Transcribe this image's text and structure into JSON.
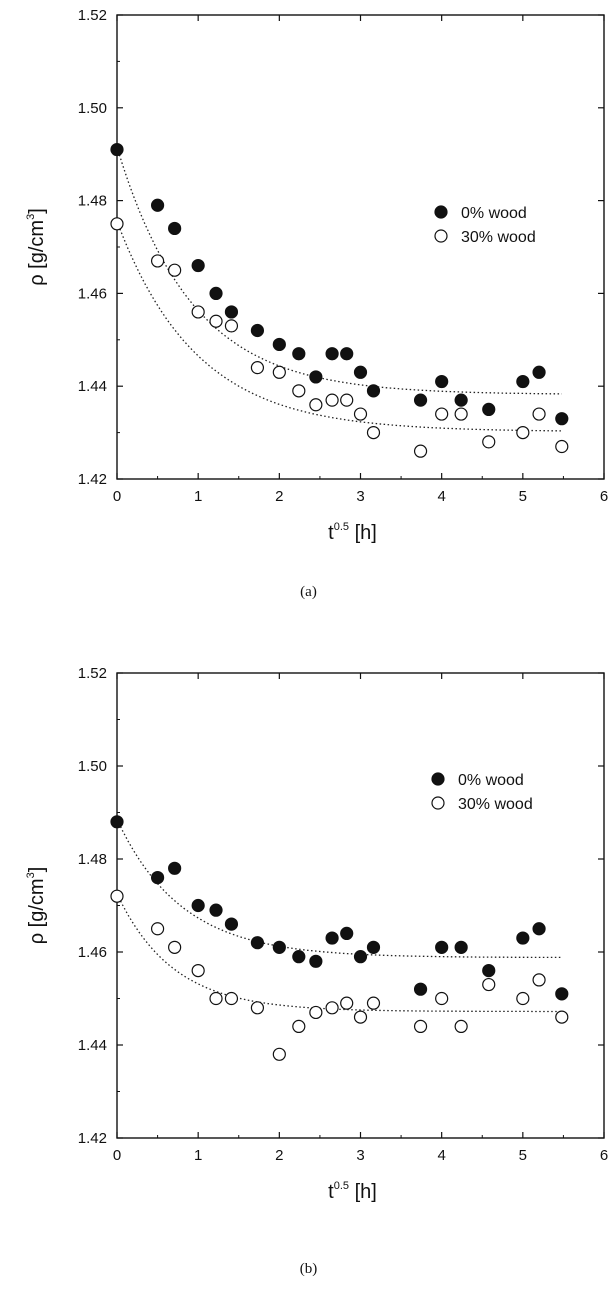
{
  "chart_data": [
    {
      "type": "scatter",
      "panel": "(a)",
      "xlabel_base": "t",
      "xlabel_sup": "0.5",
      "xlabel_unit": "[h]",
      "ylabel_base": "ρ [g/cm",
      "ylabel_sup": "3",
      "ylabel_close": "]",
      "xlim": [
        0,
        6
      ],
      "ylim": [
        1.42,
        1.52
      ],
      "xticks": [
        "0",
        "1",
        "2",
        "3",
        "4",
        "5",
        "6"
      ],
      "yticks": [
        "1.42",
        "1.44",
        "1.46",
        "1.48",
        "1.50",
        "1.52"
      ],
      "grid": false,
      "legend_position": "upper-right",
      "series": [
        {
          "name": "0% wood",
          "marker": "filled-circle",
          "x": [
            0,
            0.5,
            0.71,
            1.0,
            1.22,
            1.41,
            1.73,
            2.0,
            2.24,
            2.45,
            2.65,
            2.83,
            3.0,
            3.16,
            3.74,
            4.0,
            4.24,
            4.58,
            5.0,
            5.2,
            5.48
          ],
          "y": [
            1.491,
            1.479,
            1.474,
            1.466,
            1.46,
            1.456,
            1.452,
            1.449,
            1.447,
            1.442,
            1.447,
            1.447,
            1.443,
            1.439,
            1.437,
            1.441,
            1.437,
            1.435,
            1.441,
            1.443,
            1.433
          ],
          "fit": {
            "y0": 1.4915,
            "yinf": 1.4382,
            "k": 1.08
          }
        },
        {
          "name": "30% wood",
          "marker": "open-circle",
          "x": [
            0,
            0.5,
            0.71,
            1.0,
            1.22,
            1.41,
            1.73,
            2.0,
            2.24,
            2.45,
            2.65,
            2.83,
            3.0,
            3.16,
            3.74,
            4.0,
            4.24,
            4.58,
            5.0,
            5.2,
            5.48
          ],
          "y": [
            1.475,
            1.467,
            1.465,
            1.456,
            1.454,
            1.453,
            1.444,
            1.443,
            1.439,
            1.436,
            1.437,
            1.437,
            1.434,
            1.43,
            1.426,
            1.434,
            1.434,
            1.428,
            1.43,
            1.434,
            1.427
          ],
          "fit": {
            "y0": 1.4755,
            "yinf": 1.4302,
            "k": 1.02
          }
        }
      ]
    },
    {
      "type": "scatter",
      "panel": "(b)",
      "xlabel_base": "t",
      "xlabel_sup": "0.5",
      "xlabel_unit": "[h]",
      "ylabel_base": "ρ [g/cm",
      "ylabel_sup": "3",
      "ylabel_close": "]",
      "xlim": [
        0,
        6
      ],
      "ylim": [
        1.42,
        1.52
      ],
      "xticks": [
        "0",
        "1",
        "2",
        "3",
        "4",
        "5",
        "6"
      ],
      "yticks": [
        "1.42",
        "1.44",
        "1.46",
        "1.48",
        "1.50",
        "1.52"
      ],
      "grid": false,
      "legend_position": "upper-right",
      "series": [
        {
          "name": "0% wood",
          "marker": "filled-circle",
          "x": [
            0,
            0.5,
            0.71,
            1.0,
            1.22,
            1.41,
            1.73,
            2.0,
            2.24,
            2.45,
            2.65,
            2.83,
            3.0,
            3.16,
            3.74,
            4.0,
            4.24,
            4.58,
            5.0,
            5.2,
            5.48
          ],
          "y": [
            1.488,
            1.476,
            1.478,
            1.47,
            1.469,
            1.466,
            1.462,
            1.461,
            1.459,
            1.458,
            1.463,
            1.464,
            1.459,
            1.461,
            1.452,
            1.461,
            1.461,
            1.456,
            1.463,
            1.465,
            1.451
          ],
          "fit": {
            "y0": 1.4885,
            "yinf": 1.4588,
            "k": 1.25
          }
        },
        {
          "name": "30% wood",
          "marker": "open-circle",
          "x": [
            0,
            0.5,
            0.71,
            1.0,
            1.22,
            1.41,
            1.73,
            2.0,
            2.24,
            2.45,
            2.65,
            2.83,
            3.0,
            3.16,
            3.74,
            4.0,
            4.24,
            4.58,
            5.0,
            5.2,
            5.48
          ],
          "y": [
            1.472,
            1.465,
            1.461,
            1.456,
            1.45,
            1.45,
            1.448,
            1.438,
            1.444,
            1.447,
            1.448,
            1.449,
            1.446,
            1.449,
            1.444,
            1.45,
            1.444,
            1.453,
            1.45,
            1.454,
            1.446
          ],
          "fit": {
            "y0": 1.4725,
            "yinf": 1.4472,
            "k": 1.45
          }
        }
      ]
    }
  ]
}
